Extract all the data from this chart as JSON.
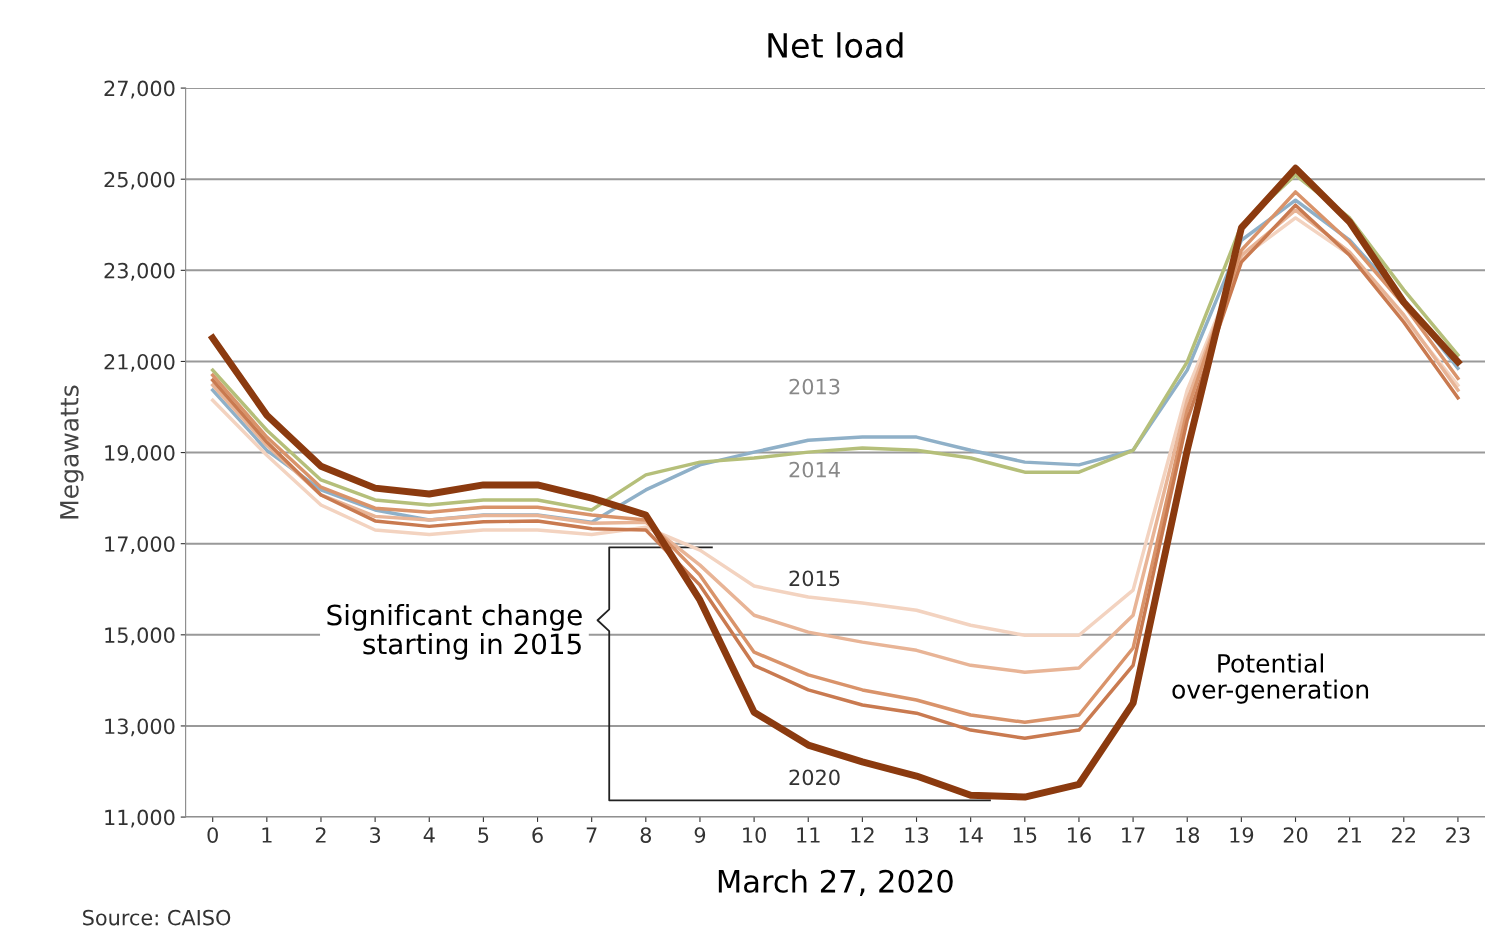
{
  "chart_data": {
    "type": "line",
    "title": "Net load",
    "xlabel": "March 27, 2020",
    "ylabel": "Megawatts",
    "categories": [
      "0",
      "1",
      "2",
      "3",
      "4",
      "5",
      "6",
      "7",
      "8",
      "9",
      "10",
      "11",
      "12",
      "13",
      "14",
      "15",
      "16",
      "17",
      "18",
      "19",
      "20",
      "21",
      "22",
      "23"
    ],
    "ylim": [
      11000,
      27000
    ],
    "yticks": [
      {
        "value": 11000,
        "label": "11,000"
      },
      {
        "value": 13000,
        "label": "13,000"
      },
      {
        "value": 15000,
        "label": "15,000"
      },
      {
        "value": 17000,
        "label": "17,000"
      },
      {
        "value": 19000,
        "label": "19,000"
      },
      {
        "value": 21000,
        "label": "21,000"
      },
      {
        "value": 23000,
        "label": "23,000"
      },
      {
        "value": 25000,
        "label": "25,000"
      },
      {
        "value": 27000,
        "label": "27,000"
      }
    ],
    "grid": "y",
    "marker": "none",
    "line_style": "solid",
    "series": [
      {
        "color": "#8fb0c8",
        "values": [
          20370,
          19050,
          18180,
          17740,
          17520,
          17630,
          17630,
          17470,
          18180,
          18730,
          19010,
          19270,
          19340,
          19340,
          19050,
          18790,
          18730,
          19050,
          20810,
          23660,
          24540,
          23660,
          22350,
          20850
        ]
      },
      {
        "color": "#b5bf7a",
        "values": [
          20810,
          19490,
          18400,
          17960,
          17850,
          17960,
          17960,
          17740,
          18510,
          18790,
          18880,
          19010,
          19100,
          19050,
          18880,
          18570,
          18570,
          19050,
          20990,
          23990,
          25090,
          24150,
          22570,
          21140
        ]
      },
      {
        "color": "#f3d3c0",
        "values": [
          20150,
          18940,
          17850,
          17300,
          17200,
          17300,
          17300,
          17200,
          17360,
          16860,
          16070,
          15830,
          15700,
          15540,
          15210,
          14990,
          14990,
          15980,
          20370,
          23270,
          24150,
          23340,
          21950,
          20480
        ]
      },
      {
        "color": "#e8b496",
        "values": [
          20480,
          19160,
          18070,
          17600,
          17520,
          17620,
          17620,
          17450,
          17470,
          16530,
          15430,
          15060,
          14840,
          14660,
          14330,
          14180,
          14270,
          15430,
          20150,
          23330,
          24320,
          23400,
          22020,
          20370
        ]
      },
      {
        "color": "#d9936a",
        "values": [
          20700,
          19340,
          18240,
          17780,
          17690,
          17800,
          17800,
          17630,
          17520,
          16310,
          14620,
          14120,
          13790,
          13570,
          13240,
          13080,
          13240,
          14710,
          19930,
          23440,
          24720,
          23620,
          22240,
          20630
        ]
      },
      {
        "color": "#c97a50",
        "values": [
          20590,
          19230,
          18070,
          17500,
          17380,
          17480,
          17500,
          17330,
          17300,
          16090,
          14330,
          13790,
          13460,
          13280,
          12910,
          12730,
          12910,
          14330,
          19710,
          23180,
          24430,
          23330,
          21860,
          20200
        ]
      },
      {
        "color": "#8b3a0f",
        "values": [
          21510,
          19820,
          18700,
          18220,
          18090,
          18290,
          18290,
          18000,
          17630,
          15760,
          13300,
          12580,
          12210,
          11900,
          11480,
          11440,
          11720,
          13500,
          19050,
          23930,
          25240,
          24060,
          22300,
          20990
        ]
      }
    ],
    "annotations": [
      "2013",
      "2014",
      "2015",
      "2020",
      "Significant change\nstarting in 2015",
      "Potential\nover-generation",
      "Source: CAISO"
    ]
  }
}
